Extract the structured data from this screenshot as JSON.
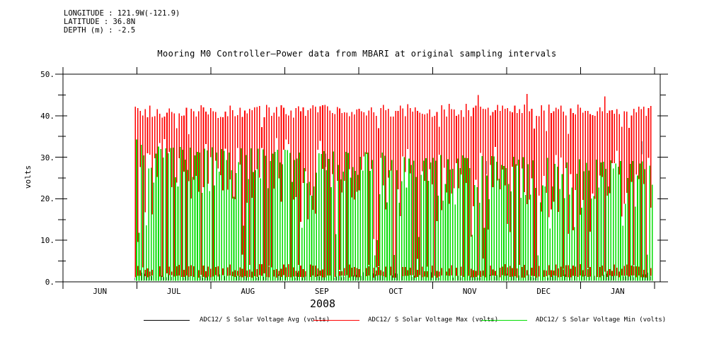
{
  "header": {
    "longitude": "LONGITUDE : 121.9W(-121.9)",
    "latitude": "LATITUDE : 36.8N",
    "depth": "DEPTH (m) : -2.5"
  },
  "title": "Mooring M0 Controller–Power data from MBARI at original sampling intervals",
  "year_label": "2008",
  "chart_data": {
    "type": "line",
    "title": "Mooring M0 Controller–Power data from MBARI at original sampling intervals",
    "ylabel": "volts",
    "ylim": [
      0,
      50
    ],
    "y_major_ticks": [
      0,
      10,
      20,
      30,
      40,
      50
    ],
    "y_tick_labels": [
      "0.",
      "10.",
      "20.",
      "30.",
      "40.",
      "50."
    ],
    "y_minor_tick_step": 5,
    "x_tick_months": [
      "JUN",
      "JUL",
      "AUG",
      "SEP",
      "OCT",
      "NOV",
      "DEC",
      "JAN"
    ],
    "x_year": "2008",
    "grid": false,
    "legend_position": "bottom",
    "series": [
      {
        "name": "ADC12/ S Solar Voltage Avg (volts)",
        "color": "#000000",
        "pattern": "diurnal oscillation at original sampling intervals",
        "day_peak_volts_range": [
          20,
          33
        ],
        "night_low_volts_range": [
          0.4,
          2.2
        ]
      },
      {
        "name": "ADC12/ S Solar Voltage Max (volts)",
        "color": "#ff0000",
        "pattern": "diurnal oscillation at original sampling intervals",
        "day_peak_volts_range": [
          38,
          46
        ],
        "night_low_volts_range": [
          1,
          4.3
        ]
      },
      {
        "name": "ADC12/ S Solar Voltage Min (volts)",
        "color": "#00dd00",
        "pattern": "diurnal oscillation at original sampling intervals",
        "day_peak_volts_range": [
          6,
          34.5
        ],
        "night_low_volts_range": [
          0.2,
          0.9
        ]
      }
    ],
    "data_span": {
      "start": "~1 JUL 2008",
      "end": "~mid JAN 2009",
      "n_days": 213
    },
    "monthly_envelope": {
      "months": [
        "JUL",
        "AUG",
        "SEP",
        "OCT",
        "NOV",
        "DEC",
        "JAN"
      ],
      "max_series_day_peak": [
        41,
        41,
        42,
        42,
        42,
        43,
        43
      ],
      "min_series_day_peak": [
        31,
        30,
        29,
        28,
        26,
        26,
        29
      ]
    },
    "seed": 7
  },
  "legend": {
    "items": [
      {
        "label": "ADC12/ S Solar Voltage Avg (volts)",
        "color": "#000000"
      },
      {
        "label": "ADC12/ S Solar Voltage Max (volts)",
        "color": "#ff0000"
      },
      {
        "label": "ADC12/ S Solar Voltage Min (volts)",
        "color": "#00dd00"
      }
    ]
  }
}
